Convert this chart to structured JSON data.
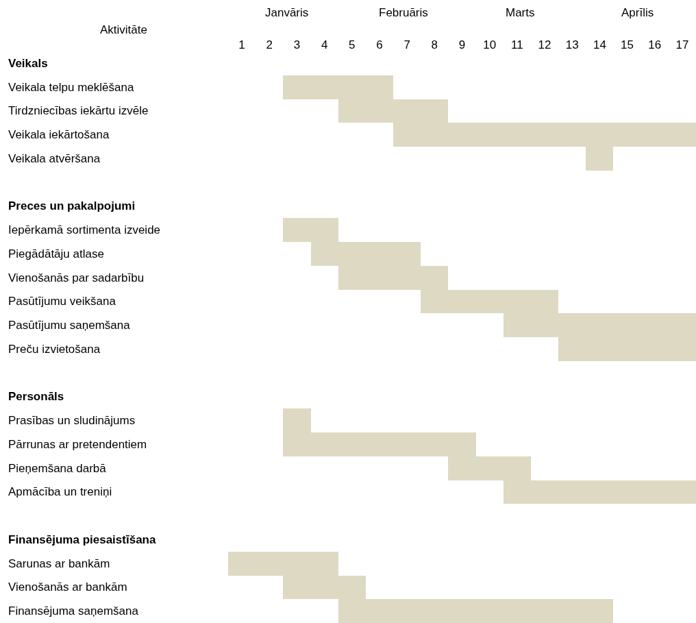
{
  "chart_data": {
    "type": "bar",
    "orientation": "horizontal",
    "ylabel": "Aktivitāte",
    "categories": [
      "Veikals",
      "Veikala telpu meklēšana",
      "Tirdzniecības iekārtu izvēle",
      "Veikala iekārtošana",
      "Veikala atvēršana",
      null,
      "Preces un pakalpojumi",
      "Iepērkamā sortimenta izveide",
      "Piegādātāju atlase",
      "Vienošanās par sadarbību",
      "Pasūtījumu veikšana",
      "Pasūtījumu saņemšana",
      "Preču izvietošana",
      null,
      "Personāls",
      "Prasības un sludinājums",
      "Pārrunas ar pretendentiem",
      "Pieņemšana darbā",
      "Apmācība un treniņi",
      null,
      "Finansējuma piesaistīšana",
      "Sarunas ar bankām",
      "Vienošanās ar bankām",
      "Finansējuma saņemšana"
    ],
    "base": [
      null,
      2.5,
      4.5,
      6.5,
      13.5,
      null,
      null,
      2.5,
      3.5,
      4.5,
      7.5,
      10.5,
      12.5,
      null,
      null,
      2.5,
      2.5,
      8.5,
      10.5,
      null,
      null,
      0.5,
      2.5,
      4.5
    ],
    "values": [
      null,
      4,
      4,
      11,
      1,
      null,
      null,
      2,
      4,
      4,
      5,
      7,
      5,
      null,
      null,
      1,
      7,
      3,
      7,
      null,
      null,
      4,
      3,
      10
    ],
    "color": "#ddd9c3",
    "xlim": [
      0.5,
      17.5
    ],
    "xticks": [
      1,
      2,
      3,
      4,
      5,
      6,
      7,
      8,
      9,
      10,
      11,
      12,
      13,
      14,
      15,
      16,
      17
    ],
    "annotations": [
      "Janvāris",
      "Februāris",
      "Marts",
      "Aprīlis"
    ],
    "grid": false,
    "legend": false
  }
}
